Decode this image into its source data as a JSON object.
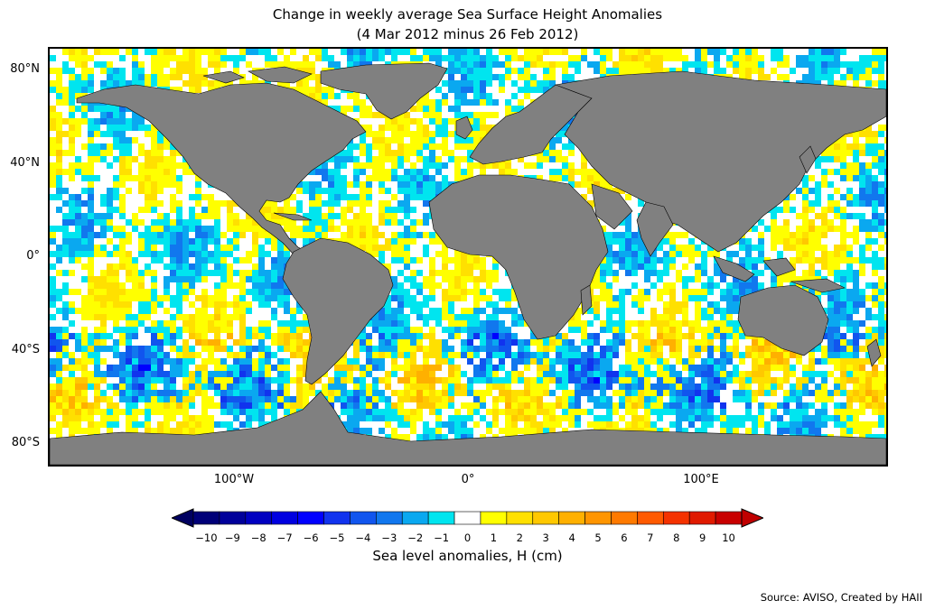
{
  "title": {
    "line1": "Change in weekly average Sea Surface Height Anomalies",
    "line2": "(4 Mar 2012 minus 26 Feb 2012)"
  },
  "map": {
    "projection": "plate carree",
    "land_color": "#808080",
    "ocean_background": "#ffffff",
    "lat_labels": [
      "80°N",
      "40°N",
      "0°",
      "40°S",
      "80°S"
    ],
    "lon_labels": [
      "100°W",
      "0°",
      "100°E"
    ]
  },
  "colorbar": {
    "label": "Sea level anomalies, H (cm)",
    "ticks": [
      "−10",
      "−9",
      "−8",
      "−7",
      "−6",
      "−5",
      "−4",
      "−3",
      "−2",
      "−1",
      "0",
      "1",
      "2",
      "3",
      "4",
      "5",
      "6",
      "7",
      "8",
      "9",
      "10"
    ],
    "colors": [
      "#000078",
      "#00009a",
      "#0000c0",
      "#0000e0",
      "#0000ff",
      "#1133ee",
      "#1155ee",
      "#1177ee",
      "#0aa8f0",
      "#00e5ef",
      "#ffffff",
      "#ffff00",
      "#ffe000",
      "#ffc800",
      "#ffb000",
      "#ff9500",
      "#ff7a00",
      "#ff5a00",
      "#f43200",
      "#e01a00",
      "#c80000"
    ],
    "under_color": "#000060",
    "over_color": "#c00000"
  },
  "source": "Source: AVISO, Created by HAII"
}
